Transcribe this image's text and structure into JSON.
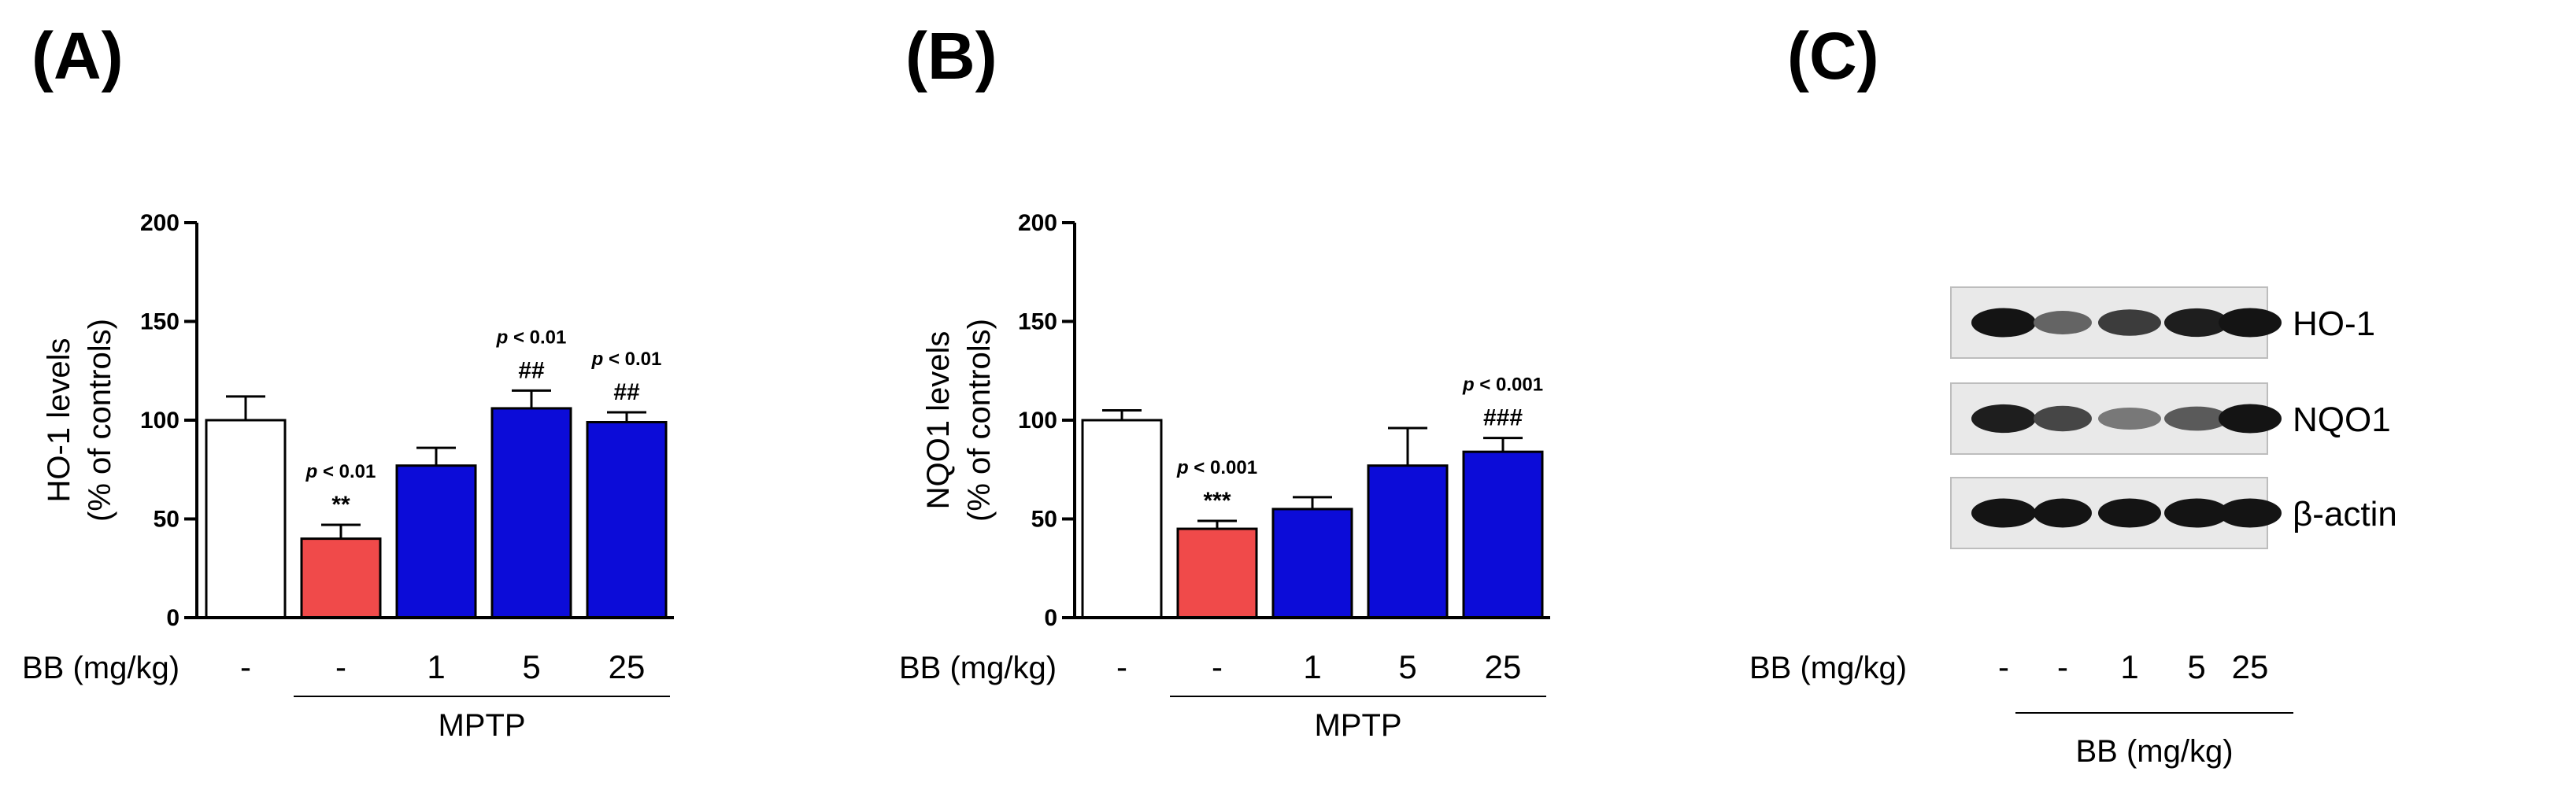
{
  "panels": {
    "a": "(A)",
    "b": "(B)",
    "c": "(C)"
  },
  "colors": {
    "control": "#ffffff",
    "mptp": "#f04a4a",
    "bb": "#0c0cd8",
    "axis": "#000000"
  },
  "x_row_label": "BB (mg/kg)",
  "group_label": "MPTP",
  "chart_data": [
    {
      "type": "bar",
      "panel": "(A)",
      "title": "",
      "xlabel": "BB (mg/kg)",
      "ylabel": "HO-1 levels",
      "ylabel2": "(% of controls)",
      "ylim": [
        0,
        200
      ],
      "yticks": [
        "0",
        "50",
        "100",
        "150",
        "200"
      ],
      "categories": [
        "-",
        "-",
        "1",
        "5",
        "25"
      ],
      "values": [
        100,
        40,
        77,
        106,
        99
      ],
      "errors": [
        12,
        7,
        9,
        9,
        5
      ],
      "fill_keys": [
        "control",
        "mptp",
        "bb",
        "bb",
        "bb"
      ],
      "group": "MPTP",
      "pvalues": [
        "",
        "p < 0.01",
        "",
        "p < 0.01",
        "p < 0.01"
      ],
      "sig_marks": [
        "",
        "**",
        "",
        "##",
        "##"
      ]
    },
    {
      "type": "bar",
      "panel": "(B)",
      "title": "",
      "xlabel": "BB (mg/kg)",
      "ylabel": "NQO1 levels",
      "ylabel2": "(% of controls)",
      "ylim": [
        0,
        200
      ],
      "yticks": [
        "0",
        "50",
        "100",
        "150",
        "200"
      ],
      "categories": [
        "-",
        "-",
        "1",
        "5",
        "25"
      ],
      "values": [
        100,
        45,
        55,
        77,
        84
      ],
      "errors": [
        5,
        4,
        6,
        19,
        7
      ],
      "fill_keys": [
        "control",
        "mptp",
        "bb",
        "bb",
        "bb"
      ],
      "group": "MPTP",
      "pvalues": [
        "",
        "p < 0.001",
        "",
        "",
        "p < 0.001"
      ],
      "sig_marks": [
        "",
        "***",
        "",
        "",
        "###"
      ]
    }
  ],
  "blot": {
    "rows": [
      {
        "label": "HO-1",
        "intensities": [
          0.95,
          0.55,
          0.75,
          0.9,
          0.95
        ]
      },
      {
        "label": "NQO1",
        "intensities": [
          0.9,
          0.7,
          0.45,
          0.6,
          0.95
        ]
      },
      {
        "label": "β-actin",
        "intensities": [
          0.95,
          0.95,
          0.95,
          0.95,
          0.95
        ]
      }
    ],
    "x_row_label": "BB (mg/kg)",
    "categories": [
      "-",
      "-",
      "1",
      "5",
      "25"
    ],
    "group_label": "BB (mg/kg)"
  }
}
